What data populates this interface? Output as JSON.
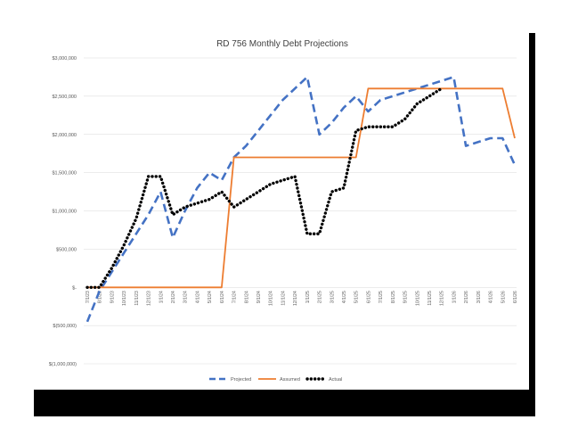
{
  "chart_data": {
    "type": "line",
    "title": "RD 756 Monthly Debt Projections",
    "xlabel": "",
    "ylabel": "",
    "ylim": [
      -1000000,
      3000000
    ],
    "y_tick_values": [
      3000000,
      2500000,
      2000000,
      1500000,
      1000000,
      500000,
      0,
      -500000,
      -1000000
    ],
    "y_tick_labels": [
      "$3,000,000",
      "$2,500,000",
      "$2,000,000",
      "$1,500,000",
      "$1,000,000",
      "$500,000",
      "$-",
      "$(500,000)",
      "$(1,000,000)"
    ],
    "grid": true,
    "legend_position": "bottom",
    "categories": [
      "7/1/23",
      "8/1/23",
      "9/1/23",
      "10/1/23",
      "11/1/23",
      "12/1/23",
      "1/1/24",
      "2/1/24",
      "3/1/24",
      "4/1/24",
      "5/1/24",
      "6/1/24",
      "7/1/24",
      "8/1/24",
      "9/1/24",
      "10/1/24",
      "11/1/24",
      "12/1/24",
      "1/1/25",
      "2/1/25",
      "3/1/25",
      "4/1/25",
      "5/1/25",
      "6/1/25",
      "7/1/25",
      "8/1/25",
      "9/1/25",
      "10/1/25",
      "11/1/25",
      "12/1/25",
      "1/1/26",
      "2/1/26",
      "3/1/26",
      "4/1/26",
      "5/1/26",
      "6/1/26"
    ],
    "series": [
      {
        "name": "Projected",
        "color": "#4472C4",
        "style": "dashed",
        "values": [
          -450000,
          -50000,
          200000,
          450000,
          700000,
          950000,
          1250000,
          650000,
          1000000,
          1300000,
          1500000,
          1400000,
          1700000,
          1850000,
          2050000,
          2250000,
          2450000,
          2600000,
          2750000,
          2000000,
          2150000,
          2350000,
          2500000,
          2300000,
          2450000,
          2500000,
          2550000,
          2600000,
          2650000,
          2700000,
          2750000,
          1850000,
          1900000,
          1950000,
          1950000,
          1600000
        ]
      },
      {
        "name": "Assumed",
        "color": "#ED7D31",
        "style": "solid",
        "values": [
          0,
          0,
          0,
          0,
          0,
          0,
          0,
          0,
          0,
          0,
          0,
          0,
          1700000,
          1700000,
          1700000,
          1700000,
          1700000,
          1700000,
          1700000,
          1700000,
          1700000,
          1700000,
          1700000,
          2600000,
          2600000,
          2600000,
          2600000,
          2600000,
          2600000,
          2600000,
          2600000,
          2600000,
          2600000,
          2600000,
          2600000,
          1950000
        ]
      },
      {
        "name": "Actual",
        "color": "#000000",
        "style": "dotted",
        "values": [
          0,
          0,
          250000,
          550000,
          900000,
          1450000,
          1450000,
          950000,
          1050000,
          1100000,
          1150000,
          1250000,
          1050000,
          1150000,
          1250000,
          1350000,
          1400000,
          1450000,
          700000,
          700000,
          1250000,
          1300000,
          2050000,
          2100000,
          2100000,
          2100000,
          2200000,
          2400000,
          2500000,
          2600000,
          null,
          null,
          null,
          null,
          null,
          null
        ]
      }
    ]
  }
}
